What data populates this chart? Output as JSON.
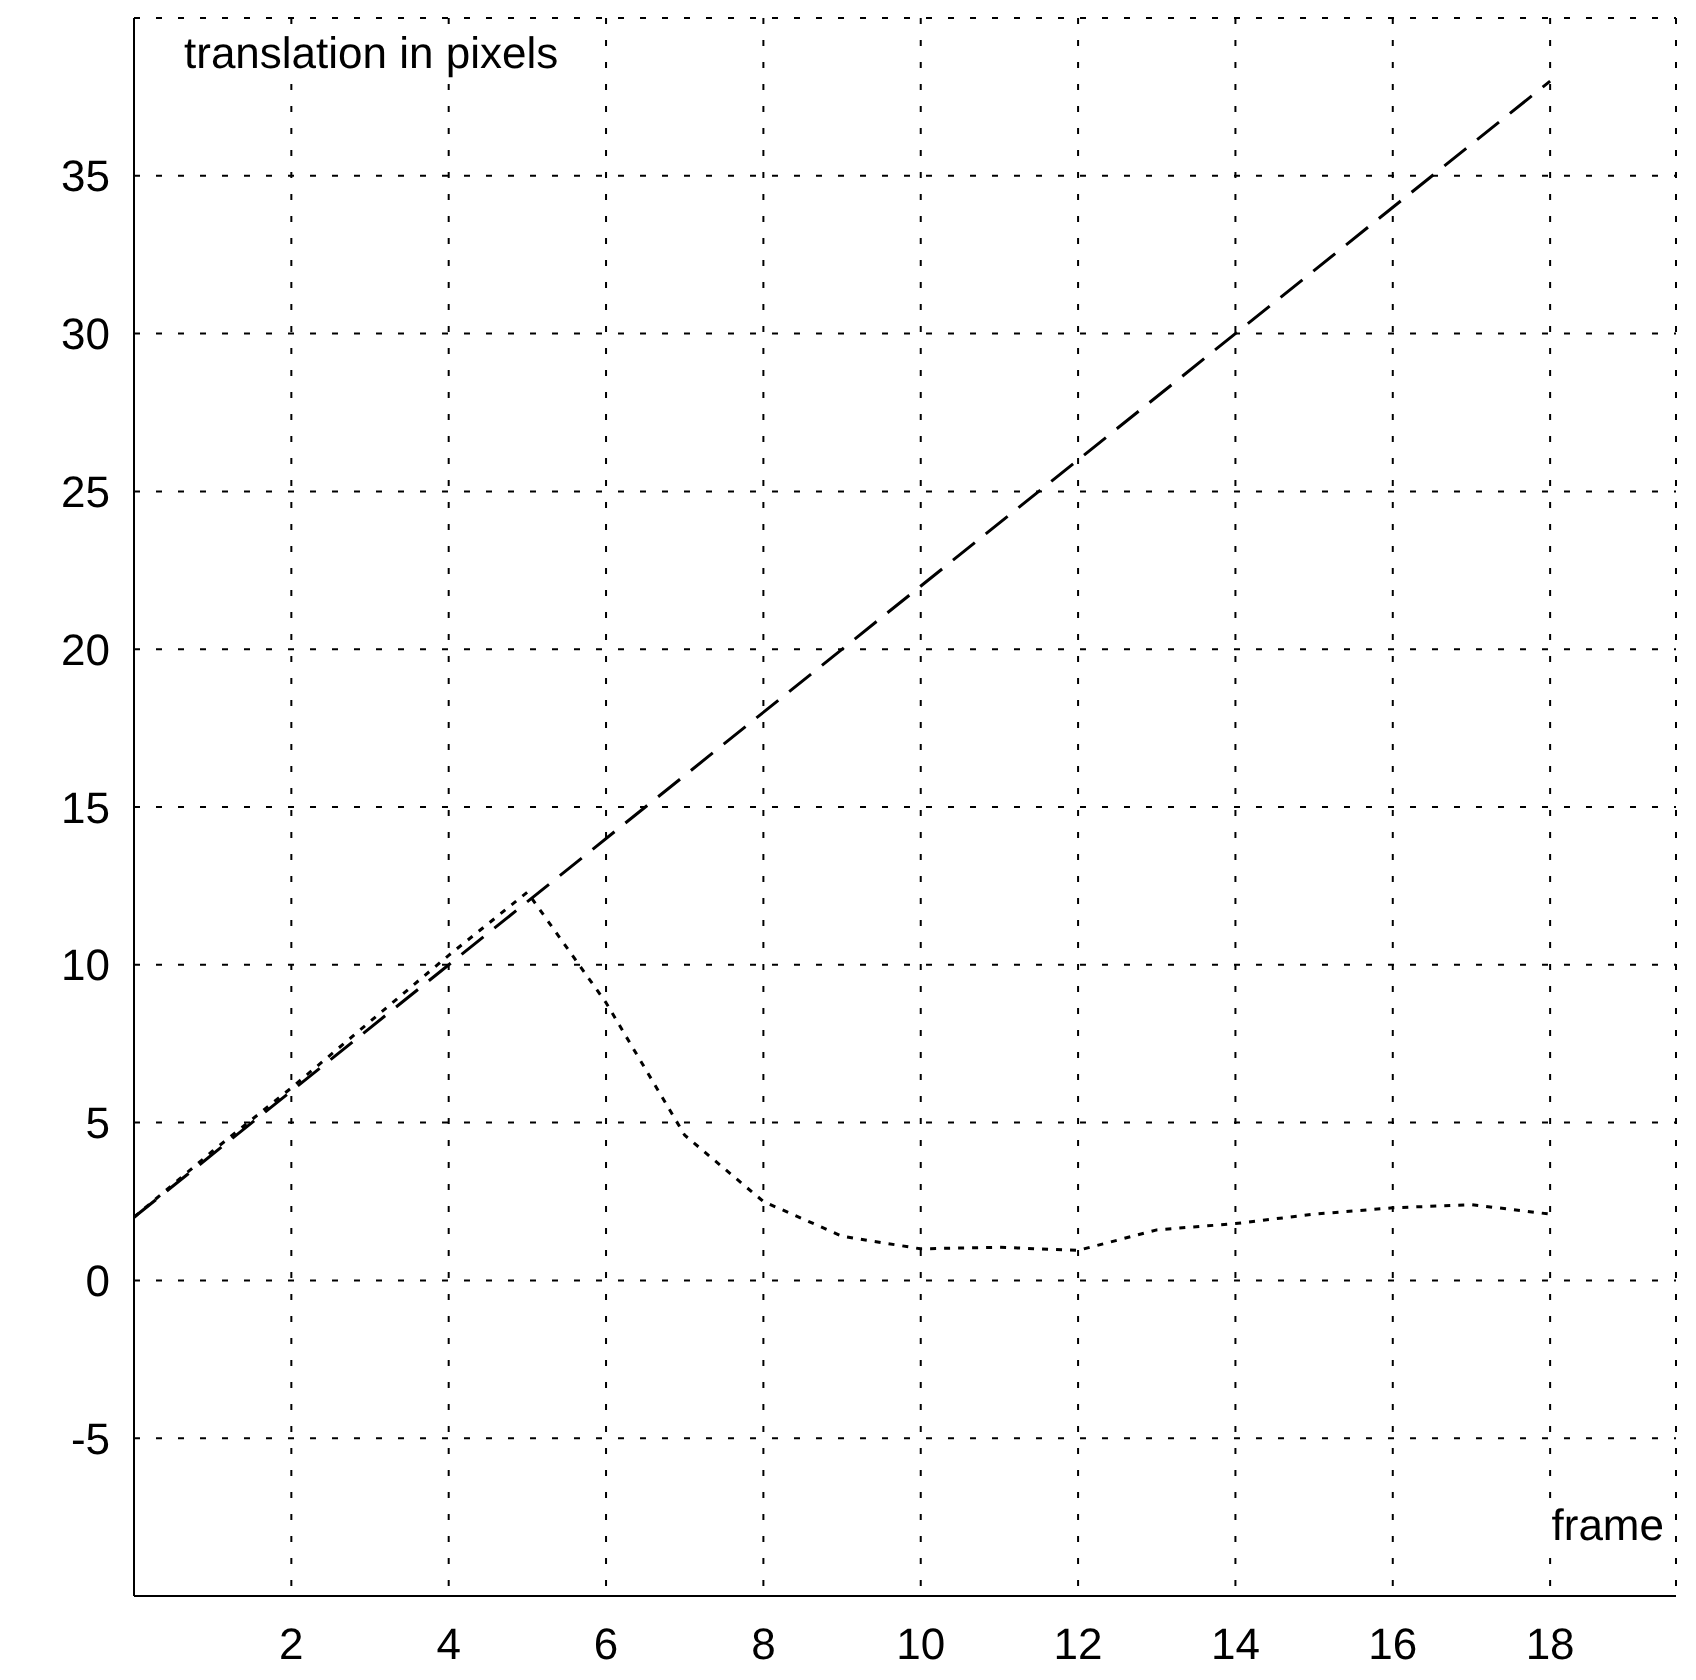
{
  "chart_data": {
    "type": "line",
    "title": "translation in pixels",
    "xlabel": "frame",
    "x": [
      0,
      1,
      2,
      3,
      4,
      5,
      6,
      7,
      8,
      9,
      10,
      11,
      12,
      13,
      14,
      15,
      16,
      17,
      18
    ],
    "series": [
      {
        "color": "#000000",
        "line_style": "dashed",
        "x": [
          0,
          18
        ],
        "values": [
          2,
          38
        ]
      },
      {
        "color": "#000000",
        "line_style": "dotted",
        "values": [
          2,
          4.1,
          6.1,
          8.2,
          10.3,
          12.3,
          8.8,
          4.6,
          2.5,
          1.4,
          1.0,
          1.05,
          0.95,
          1.6,
          1.8,
          2.1,
          2.3,
          2.4,
          2.1
        ]
      }
    ],
    "xlim": [
      0,
      19.6
    ],
    "ylim": [
      -10,
      40
    ],
    "xticks": [
      2,
      4,
      6,
      8,
      10,
      12,
      14,
      16,
      18
    ],
    "yticks": [
      -5,
      0,
      5,
      10,
      15,
      20,
      25,
      30,
      35
    ],
    "grid": true,
    "marker": "none"
  }
}
